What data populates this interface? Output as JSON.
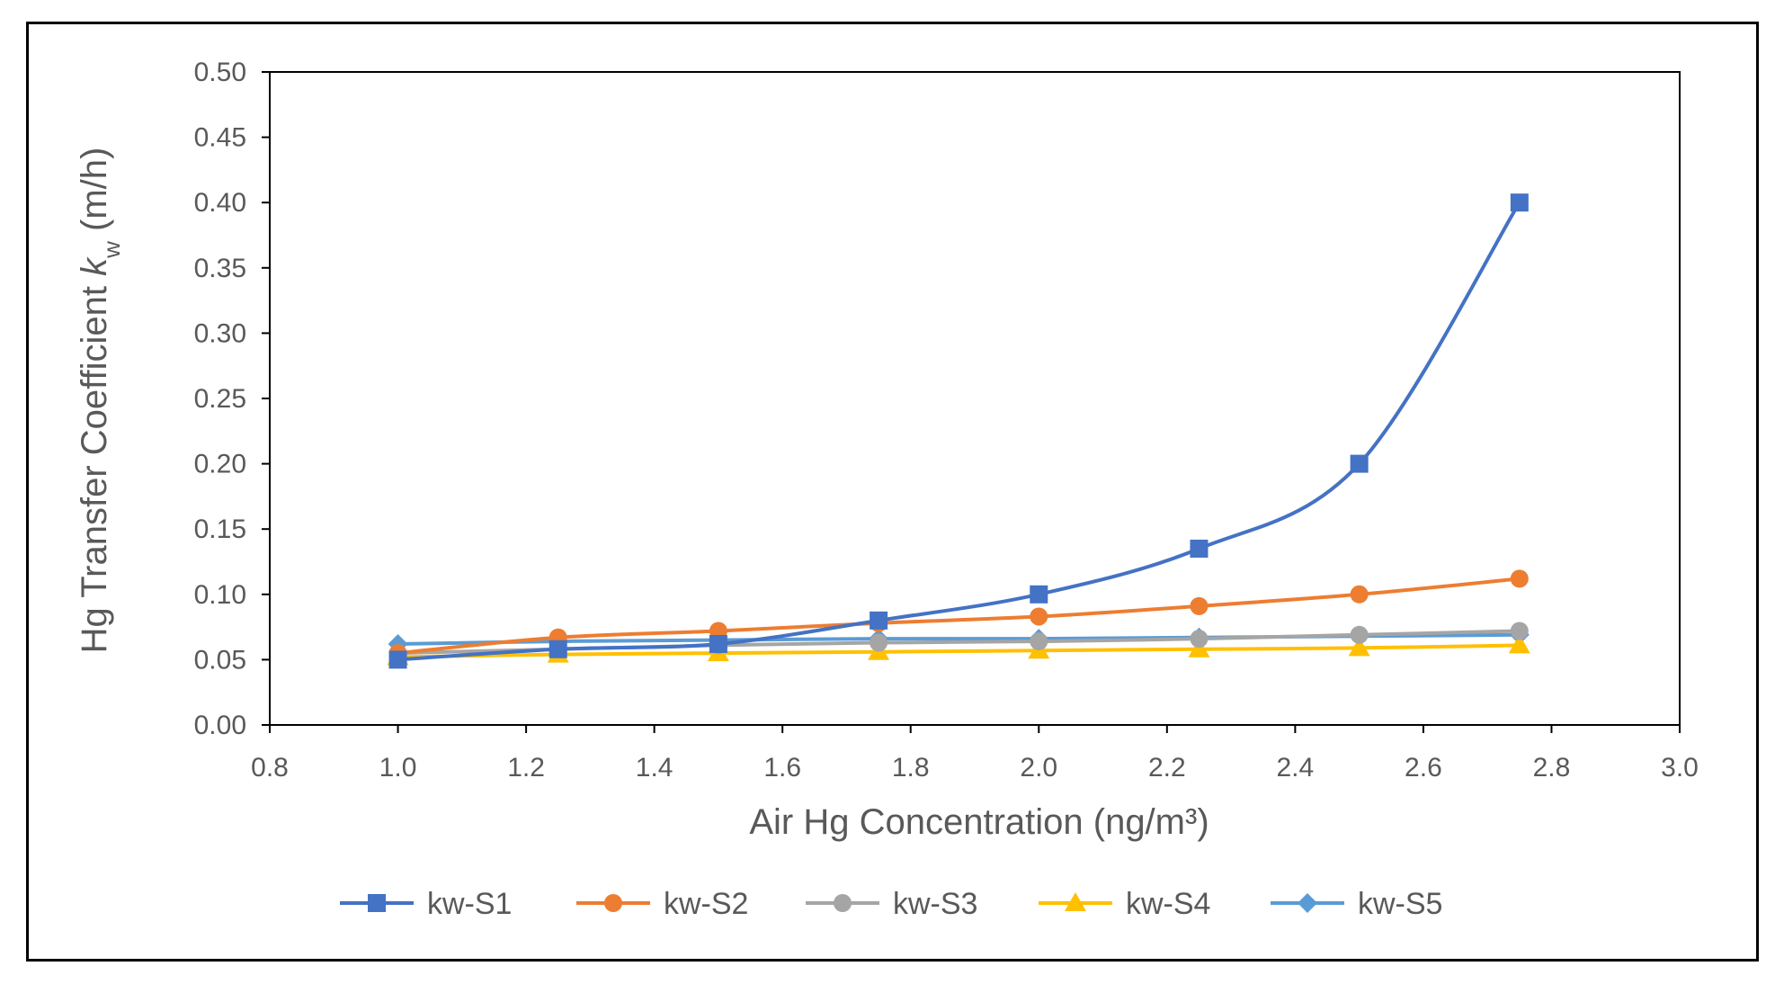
{
  "chart_data": {
    "type": "line",
    "title": "",
    "xlabel": "Air Hg Concentration (ng/m³)",
    "ylabel": "Hg Transfer Coefficient kw (m/h)",
    "ylabel_parts": {
      "prefix": "Hg Transfer Coefficient ",
      "var": "k",
      "sub": "w",
      "suffix": " (m/h)"
    },
    "xlim": [
      0.8,
      3.0
    ],
    "ylim": [
      0.0,
      0.5
    ],
    "xticks": [
      0.8,
      1.0,
      1.2,
      1.4,
      1.6,
      1.8,
      2.0,
      2.2,
      2.4,
      2.6,
      2.8,
      3.0
    ],
    "yticks": [
      0.0,
      0.05,
      0.1,
      0.15,
      0.2,
      0.25,
      0.3,
      0.35,
      0.4,
      0.45,
      0.5
    ],
    "x_decimals": 1,
    "y_decimals": 2,
    "grid": false,
    "smooth": true,
    "legend_position": "bottom",
    "x": [
      1.0,
      1.25,
      1.5,
      1.75,
      2.0,
      2.25,
      2.5,
      2.75
    ],
    "series": [
      {
        "name": "kw-S1",
        "color": "#4472C4",
        "marker": "square",
        "values": [
          0.05,
          0.058,
          0.062,
          0.08,
          0.1,
          0.135,
          0.2,
          0.4
        ]
      },
      {
        "name": "kw-S2",
        "color": "#ED7D31",
        "marker": "circle",
        "values": [
          0.055,
          0.067,
          0.072,
          0.078,
          0.083,
          0.091,
          0.1,
          0.112
        ]
      },
      {
        "name": "kw-S3",
        "color": "#A5A5A5",
        "marker": "circle",
        "values": [
          0.055,
          0.058,
          0.061,
          0.063,
          0.064,
          0.066,
          0.069,
          0.072
        ]
      },
      {
        "name": "kw-S4",
        "color": "#FFC000",
        "marker": "triangle",
        "values": [
          0.052,
          0.054,
          0.055,
          0.056,
          0.057,
          0.058,
          0.059,
          0.061
        ]
      },
      {
        "name": "kw-S5",
        "color": "#5B9BD5",
        "marker": "diamond",
        "values": [
          0.062,
          0.064,
          0.065,
          0.066,
          0.066,
          0.067,
          0.068,
          0.069
        ]
      }
    ]
  }
}
